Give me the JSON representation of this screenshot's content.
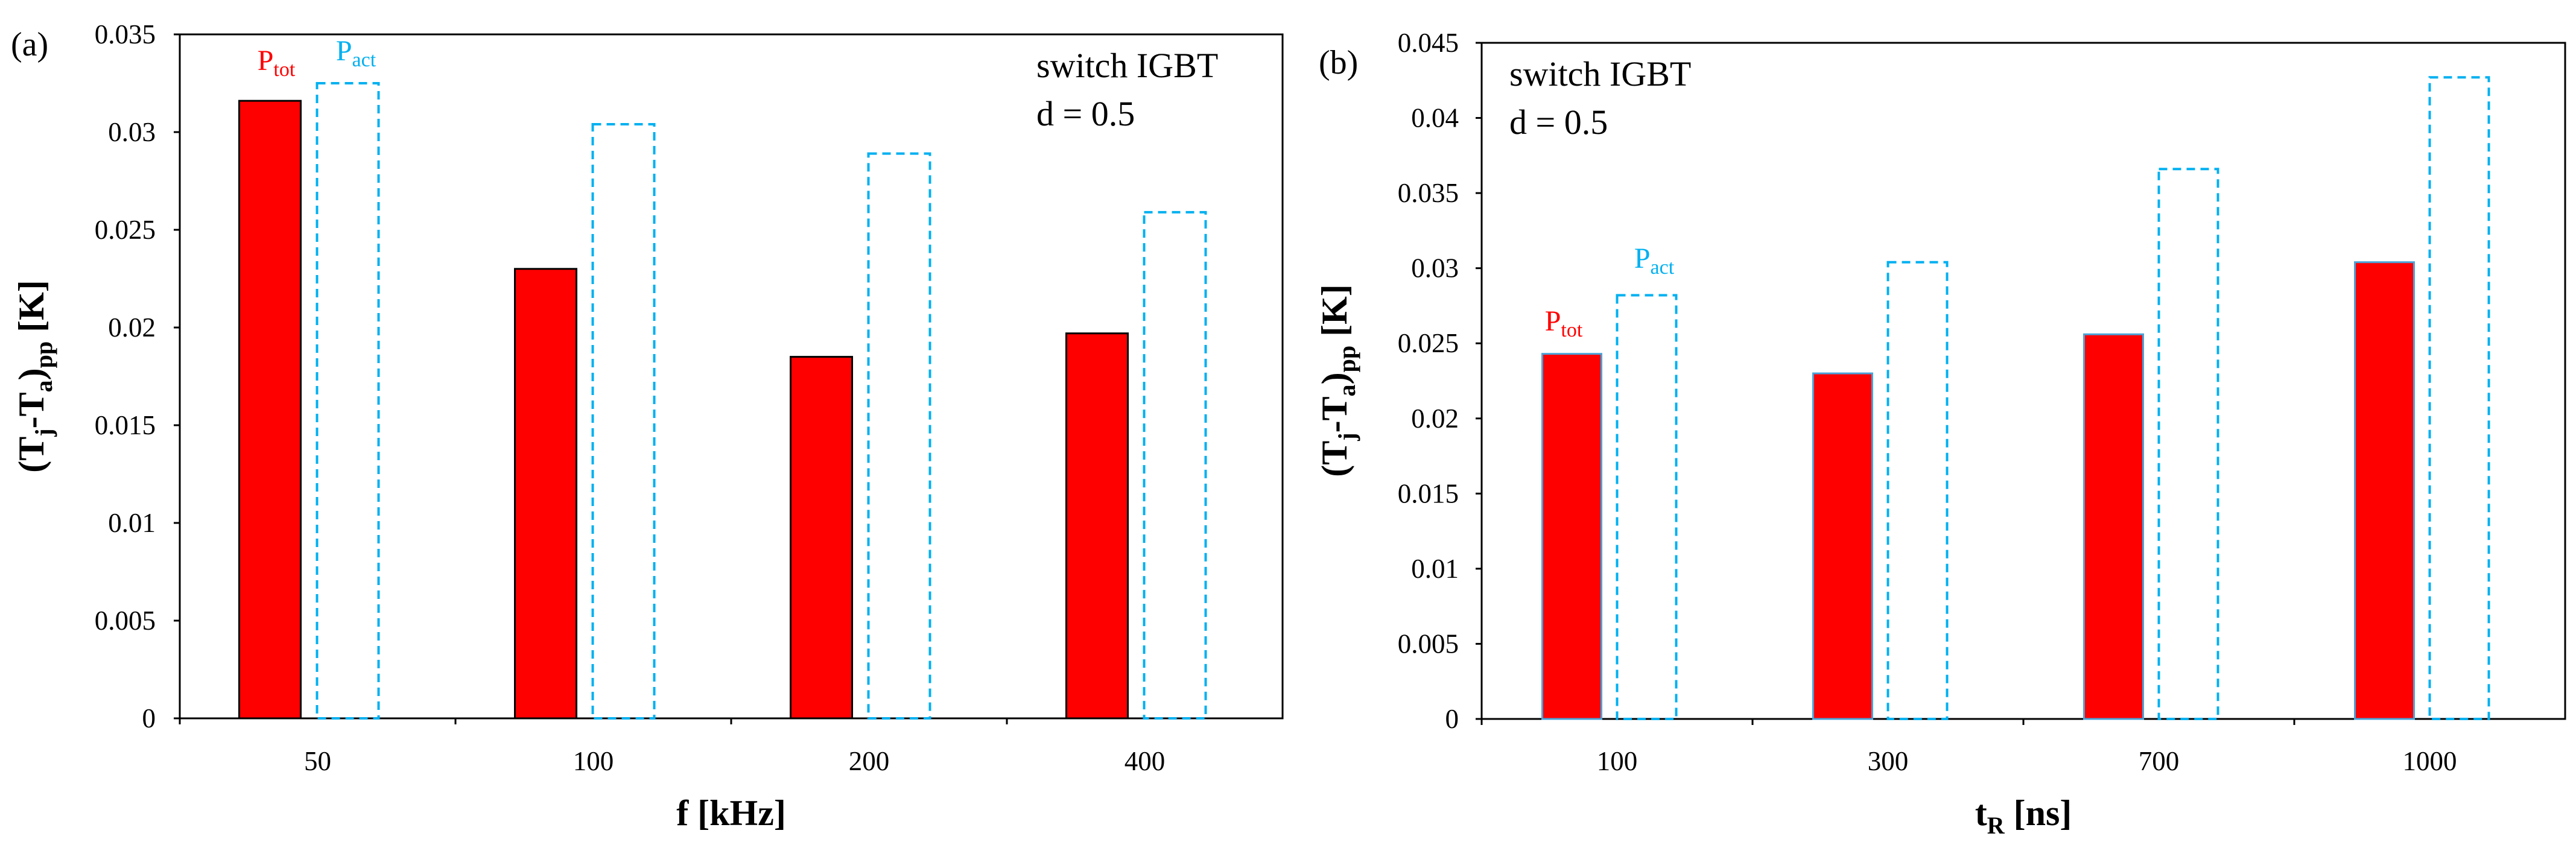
{
  "chart_data": [
    {
      "type": "bar",
      "panel_label": "(a)",
      "categories": [
        "50",
        "100",
        "200",
        "400"
      ],
      "series": [
        {
          "name": "P_tot",
          "values": [
            0.0316,
            0.023,
            0.0185,
            0.0197
          ],
          "color": "#ff0000",
          "edge": "#000000",
          "style": "solid"
        },
        {
          "name": "P_act",
          "values": [
            0.0325,
            0.0304,
            0.0289,
            0.0259
          ],
          "color": "#00b0f0",
          "style": "dashed"
        }
      ],
      "ylim": [
        0,
        0.035
      ],
      "yticks": [
        "0",
        "0.005",
        "0.01",
        "0.015",
        "0.02",
        "0.025",
        "0.03",
        "0.035"
      ],
      "ylabel": {
        "p1": "(T",
        "s1": "j",
        "p2": "-T",
        "s2": "a",
        "p3": ")",
        "s3": "pp",
        "p4": " [K]"
      },
      "xlabel": {
        "main": "f [kHz]"
      },
      "legend": {
        "tot_main": "P",
        "tot_sub": "tot",
        "act_main": "P",
        "act_sub": "act"
      },
      "annotation": {
        "line1": "switch IGBT",
        "line2": "d = 0.5"
      }
    },
    {
      "type": "bar",
      "panel_label": "(b)",
      "categories": [
        "100",
        "300",
        "700",
        "1000"
      ],
      "series": [
        {
          "name": "P_tot",
          "values": [
            0.0243,
            0.023,
            0.0256,
            0.0304
          ],
          "color": "#ff0000",
          "edge": "#4aa3d8",
          "style": "solid"
        },
        {
          "name": "P_act",
          "values": [
            0.0282,
            0.0304,
            0.0366,
            0.0427
          ],
          "color": "#00b0f0",
          "style": "dashed"
        }
      ],
      "ylim": [
        0,
        0.045
      ],
      "yticks": [
        "0",
        "0.005",
        "0.01",
        "0.015",
        "0.02",
        "0.025",
        "0.03",
        "0.035",
        "0.04",
        "0.045"
      ],
      "ylabel": {
        "p1": "(T",
        "s1": "j",
        "p2": "-T",
        "s2": "a",
        "p3": ")",
        "s3": "pp",
        "p4": " [K]"
      },
      "xlabel": {
        "main": "t",
        "sub": "R",
        "rest": " [ns]"
      },
      "legend": {
        "tot_main": "P",
        "tot_sub": "tot",
        "act_main": "P",
        "act_sub": "act"
      },
      "annotation": {
        "line1": "switch IGBT",
        "line2": "d = 0.5"
      }
    }
  ]
}
